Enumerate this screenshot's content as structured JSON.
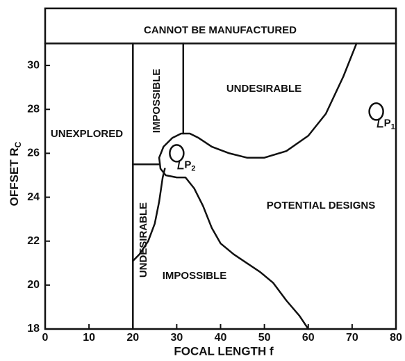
{
  "chart_data": {
    "type": "region",
    "x_label": "FOCAL LENGTH f",
    "y_label": "OFFSET R",
    "y_label_sub": "C",
    "xlim": [
      0,
      80
    ],
    "ylim": [
      18,
      32.6
    ],
    "xticks": [
      0,
      10,
      20,
      30,
      40,
      50,
      60,
      70,
      80
    ],
    "yticks": [
      18,
      20,
      22,
      24,
      26,
      28,
      30
    ],
    "color": "#111111",
    "regions": [
      "CANNOT BE MANUFACTURED",
      "UNEXPLORED",
      "IMPOSSIBLE",
      "UNDESIRABLE",
      "UNDESIRABLE",
      "POTENTIAL DESIGNS",
      "IMPOSSIBLE"
    ],
    "boundaries": [
      {
        "x": [
          0,
          80
        ],
        "y": [
          31,
          31
        ]
      },
      {
        "x": [
          20,
          20
        ],
        "y": [
          18,
          31
        ]
      },
      {
        "x": [
          31.5,
          31.5
        ],
        "y": [
          31,
          26.9
        ]
      },
      {
        "x": [
          20,
          26
        ],
        "y": [
          25.5,
          25.5
        ]
      },
      {
        "x": [
          71,
          68,
          64,
          60,
          55,
          50,
          46,
          42,
          38,
          35,
          33,
          31,
          29,
          27,
          26,
          26.3,
          27.5,
          30,
          32,
          34,
          36,
          38,
          40,
          43,
          46,
          49,
          52,
          55,
          58,
          60
        ],
        "y": [
          31,
          29.5,
          27.8,
          26.8,
          26.1,
          25.8,
          25.8,
          26,
          26.3,
          26.7,
          26.9,
          26.9,
          26.7,
          26.3,
          25.8,
          25.3,
          25,
          24.9,
          24.9,
          24.4,
          23.6,
          22.6,
          21.9,
          21.4,
          21,
          20.6,
          20.1,
          19.3,
          18.6,
          18
        ]
      },
      {
        "x": [
          20,
          21.5,
          23.5,
          25,
          26,
          26.8,
          27.3
        ],
        "y": [
          21.1,
          21.4,
          22,
          22.8,
          23.8,
          24.9,
          25.3
        ]
      }
    ],
    "points": [
      {
        "name": "P",
        "sub": "2",
        "x": 30,
        "y": 26
      },
      {
        "name": "P",
        "sub": "1",
        "x": 75.5,
        "y": 27.9
      }
    ]
  }
}
